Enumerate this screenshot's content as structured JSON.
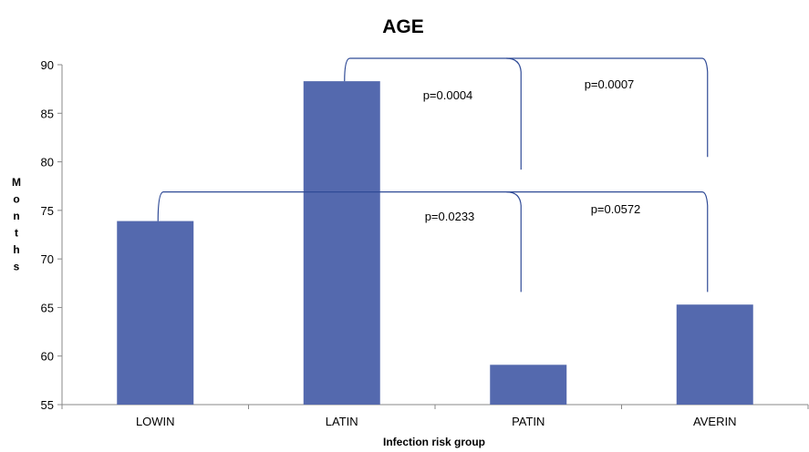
{
  "chart_data": {
    "type": "bar",
    "title": "AGE",
    "xlabel": "Infection risk group",
    "ylabel": "Months",
    "categories": [
      "LOWIN",
      "LATIN",
      "PATIN",
      "AVERIN"
    ],
    "values": [
      73.9,
      88.3,
      59.1,
      65.3
    ],
    "ylim": [
      55,
      90
    ],
    "yticks": [
      "55",
      "60",
      "65",
      "70",
      "75",
      "80",
      "85",
      "90"
    ],
    "bar_color": "#5469ae",
    "bracket_color": "#2f4a96",
    "grid": false,
    "legend": "none",
    "comparisons": [
      {
        "from": "LATIN",
        "to": "PATIN",
        "label": "p=0.0004"
      },
      {
        "from": "LATIN",
        "to": "AVERIN",
        "label": "p=0.0007"
      },
      {
        "from": "LOWIN",
        "to": "PATIN",
        "label": "p=0.0233"
      },
      {
        "from": "LOWIN",
        "to": "AVERIN",
        "label": "p=0.0572"
      }
    ]
  }
}
